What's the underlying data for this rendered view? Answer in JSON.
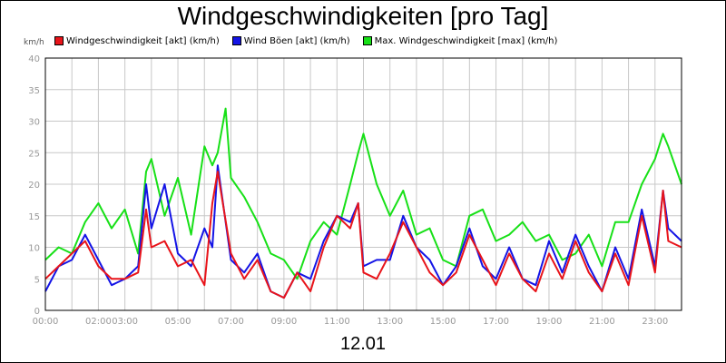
{
  "chart_data": {
    "type": "line",
    "title": "Windgeschwindigkeiten [pro Tag]",
    "unit_label": "km/h",
    "footer_label": "12.01",
    "ylim": [
      0,
      40
    ],
    "yticks": [
      0,
      5,
      10,
      15,
      20,
      25,
      30,
      35,
      40
    ],
    "xlim": [
      0,
      24
    ],
    "xticks": [
      {
        "h": 0,
        "label": "00:00"
      },
      {
        "h": 2,
        "label": "02:00"
      },
      {
        "h": 3,
        "label": "03:00"
      },
      {
        "h": 5,
        "label": "05:00"
      },
      {
        "h": 7,
        "label": "07:00"
      },
      {
        "h": 9,
        "label": "09:00"
      },
      {
        "h": 11,
        "label": "11:00"
      },
      {
        "h": 13,
        "label": "13:00"
      },
      {
        "h": 15,
        "label": "15:00"
      },
      {
        "h": 17,
        "label": "17:00"
      },
      {
        "h": 19,
        "label": "19:00"
      },
      {
        "h": 21,
        "label": "21:00"
      },
      {
        "h": 23,
        "label": "23:00"
      }
    ],
    "grid": true,
    "legend_position": "top-left",
    "series": [
      {
        "name": "Windgeschwindigkeit [akt] (km/h)",
        "color": "#e8141a",
        "x": [
          0,
          0.5,
          1,
          1.5,
          2,
          2.5,
          3,
          3.5,
          3.8,
          4,
          4.5,
          5,
          5.5,
          6,
          6.3,
          6.5,
          7,
          7.5,
          8,
          8.5,
          9,
          9.5,
          10,
          10.5,
          11,
          11.5,
          11.8,
          12,
          12.5,
          13,
          13.5,
          14,
          14.5,
          15,
          15.5,
          16,
          16.5,
          17,
          17.5,
          18,
          18.5,
          19,
          19.5,
          20,
          20.5,
          21,
          21.5,
          22,
          22.5,
          23,
          23.3,
          23.5,
          24
        ],
        "y": [
          5,
          7,
          9,
          11,
          7,
          5,
          5,
          6,
          16,
          10,
          11,
          7,
          8,
          4,
          17,
          22,
          9,
          5,
          8,
          3,
          2,
          6,
          3,
          10,
          15,
          13,
          17,
          6,
          5,
          9,
          14,
          10,
          6,
          4,
          6,
          12,
          8,
          4,
          9,
          5,
          3,
          9,
          5,
          11,
          6,
          3,
          9,
          4,
          15,
          6,
          19,
          11,
          10
        ]
      },
      {
        "name": "Wind Böen [akt] (km/h)",
        "color": "#1414e6",
        "x": [
          0,
          0.5,
          1,
          1.5,
          2,
          2.5,
          3,
          3.5,
          3.8,
          4,
          4.5,
          5,
          5.5,
          6,
          6.3,
          6.5,
          7,
          7.5,
          8,
          8.5,
          9,
          9.5,
          10,
          10.5,
          11,
          11.5,
          11.8,
          12,
          12.5,
          13,
          13.5,
          14,
          14.5,
          15,
          15.5,
          16,
          16.5,
          17,
          17.5,
          18,
          18.5,
          19,
          19.5,
          20,
          20.5,
          21,
          21.5,
          22,
          22.5,
          23,
          23.3,
          23.5,
          24
        ],
        "y": [
          3,
          7,
          8,
          12,
          8,
          4,
          5,
          7,
          20,
          13,
          20,
          9,
          7,
          13,
          10,
          23,
          8,
          6,
          9,
          3,
          2,
          6,
          5,
          11,
          15,
          14,
          17,
          7,
          8,
          8,
          15,
          10,
          8,
          4,
          7,
          13,
          7,
          5,
          10,
          5,
          4,
          11,
          6,
          12,
          7,
          3,
          10,
          5,
          16,
          7,
          19,
          13,
          11
        ]
      },
      {
        "name": "Max. Windgeschwindigkeit [max] (km/h)",
        "color": "#17e017",
        "x": [
          0,
          0.5,
          1,
          1.5,
          2,
          2.5,
          3,
          3.5,
          3.8,
          4,
          4.5,
          5,
          5.5,
          6,
          6.3,
          6.5,
          6.8,
          7,
          7.5,
          8,
          8.5,
          9,
          9.5,
          10,
          10.5,
          11,
          11.5,
          11.8,
          12,
          12.5,
          13,
          13.5,
          14,
          14.5,
          15,
          15.5,
          16,
          16.5,
          17,
          17.5,
          18,
          18.5,
          19,
          19.5,
          20,
          20.5,
          21,
          21.5,
          22,
          22.5,
          23,
          23.3,
          23.5,
          24
        ],
        "y": [
          8,
          10,
          9,
          14,
          17,
          13,
          16,
          9,
          22,
          24,
          15,
          21,
          12,
          26,
          23,
          25,
          32,
          21,
          18,
          14,
          9,
          8,
          5,
          11,
          14,
          12,
          20,
          25,
          28,
          20,
          15,
          19,
          12,
          13,
          8,
          7,
          15,
          16,
          11,
          12,
          14,
          11,
          12,
          8,
          9,
          12,
          7,
          14,
          14,
          20,
          24,
          28,
          26,
          20
        ]
      }
    ]
  }
}
